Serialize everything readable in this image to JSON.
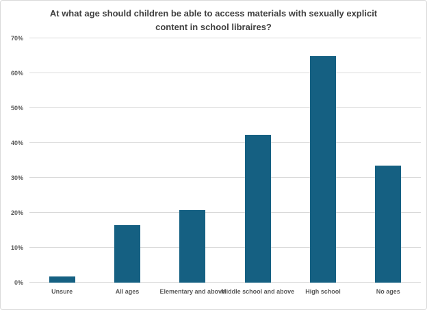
{
  "chart_data": {
    "type": "bar",
    "title": "At what age should children be able to access materials with sexually explicit content in school libraires?",
    "categories": [
      "Unsure",
      "All ages",
      "Elementary and above",
      "Middle school and above",
      "High school",
      "No ages"
    ],
    "values": [
      1.7,
      16.5,
      20.7,
      42.4,
      65,
      33.6
    ],
    "xlabel": "",
    "ylabel": "",
    "ylim": [
      0,
      70
    ],
    "ytick_step": 10,
    "ytick_suffix": "%",
    "grid": true,
    "legend_position": "none",
    "bar_color": "#156082",
    "gridline_color": "#d9d9d9",
    "axis_text_color": "#595959",
    "title_color": "#404040",
    "frame_border_color": "#d9d9d9",
    "background_color": "#ffffff"
  }
}
